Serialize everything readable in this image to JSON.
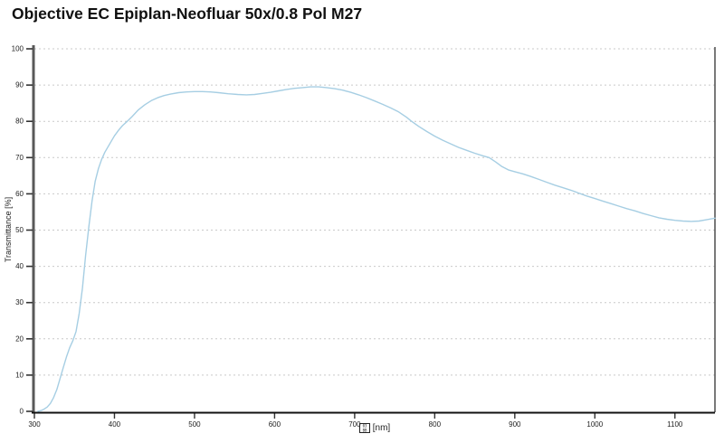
{
  "page": {
    "title": "Objective EC Epiplan-Neofluar 50x/0.8 Pol M27"
  },
  "colors": {
    "curve": "#a6cee3",
    "grid": "#c9c9c9",
    "y_axis": "#595959",
    "x_axis": "#111111",
    "right_border": "#4d4d4d",
    "tick": "#333333",
    "text": "#222222",
    "background": "#ffffff"
  },
  "chart_data": {
    "type": "line",
    "title": "Objective EC Epiplan-Neofluar 50x/0.8 Pol M27",
    "ylabel": "Transmittance [%]",
    "xlabel_unit": "[nm]",
    "xlabel_missing_glyph_hex_rows": {
      "top": "03",
      "bottom": "BB"
    },
    "xlim": [
      300,
      1150
    ],
    "ylim": [
      0,
      100
    ],
    "x_ticks": [
      300,
      400,
      500,
      600,
      700,
      800,
      900,
      1000,
      1100
    ],
    "y_ticks": [
      0,
      10,
      20,
      30,
      40,
      50,
      60,
      70,
      80,
      90,
      100
    ],
    "grid": "horizontal-dashed",
    "legend": "none",
    "series": [
      {
        "name": "Transmittance",
        "color": "#a6cee3",
        "points": [
          [
            304,
            0
          ],
          [
            308,
            0.2
          ],
          [
            312,
            0.6
          ],
          [
            316,
            1.2
          ],
          [
            320,
            2.2
          ],
          [
            324,
            3.8
          ],
          [
            328,
            6
          ],
          [
            332,
            9
          ],
          [
            336,
            12
          ],
          [
            340,
            15
          ],
          [
            344,
            17.5
          ],
          [
            348,
            19.5
          ],
          [
            352,
            22
          ],
          [
            356,
            27
          ],
          [
            360,
            34
          ],
          [
            364,
            43
          ],
          [
            368,
            51
          ],
          [
            372,
            58
          ],
          [
            376,
            63.5
          ],
          [
            380,
            67
          ],
          [
            384,
            69.5
          ],
          [
            388,
            71.5
          ],
          [
            392,
            73
          ],
          [
            396,
            74.5
          ],
          [
            400,
            76
          ],
          [
            405,
            77.5
          ],
          [
            410,
            78.8
          ],
          [
            416,
            80
          ],
          [
            422,
            81.3
          ],
          [
            430,
            83.2
          ],
          [
            438,
            84.6
          ],
          [
            446,
            85.7
          ],
          [
            454,
            86.5
          ],
          [
            462,
            87.1
          ],
          [
            470,
            87.5
          ],
          [
            480,
            87.9
          ],
          [
            490,
            88.1
          ],
          [
            500,
            88.2
          ],
          [
            510,
            88.2
          ],
          [
            520,
            88.1
          ],
          [
            530,
            87.9
          ],
          [
            542,
            87.6
          ],
          [
            554,
            87.4
          ],
          [
            565,
            87.3
          ],
          [
            575,
            87.4
          ],
          [
            585,
            87.7
          ],
          [
            595,
            88
          ],
          [
            605,
            88.4
          ],
          [
            615,
            88.8
          ],
          [
            625,
            89.1
          ],
          [
            635,
            89.3
          ],
          [
            645,
            89.5
          ],
          [
            655,
            89.5
          ],
          [
            665,
            89.3
          ],
          [
            675,
            89
          ],
          [
            685,
            88.6
          ],
          [
            695,
            88
          ],
          [
            705,
            87.3
          ],
          [
            715,
            86.5
          ],
          [
            725,
            85.6
          ],
          [
            735,
            84.7
          ],
          [
            745,
            83.7
          ],
          [
            755,
            82.6
          ],
          [
            765,
            81.1
          ],
          [
            770,
            80.2
          ],
          [
            780,
            78.6
          ],
          [
            790,
            77.2
          ],
          [
            800,
            75.9
          ],
          [
            810,
            74.8
          ],
          [
            820,
            73.8
          ],
          [
            830,
            72.8
          ],
          [
            840,
            72
          ],
          [
            850,
            71.2
          ],
          [
            860,
            70.5
          ],
          [
            868,
            70
          ],
          [
            876,
            68.8
          ],
          [
            884,
            67.5
          ],
          [
            892,
            66.6
          ],
          [
            900,
            66.1
          ],
          [
            910,
            65.5
          ],
          [
            920,
            64.8
          ],
          [
            930,
            64
          ],
          [
            940,
            63.2
          ],
          [
            950,
            62.4
          ],
          [
            960,
            61.7
          ],
          [
            970,
            61
          ],
          [
            980,
            60.2
          ],
          [
            990,
            59.4
          ],
          [
            1000,
            58.7
          ],
          [
            1010,
            58
          ],
          [
            1020,
            57.3
          ],
          [
            1030,
            56.6
          ],
          [
            1040,
            55.9
          ],
          [
            1050,
            55.3
          ],
          [
            1060,
            54.6
          ],
          [
            1070,
            54
          ],
          [
            1080,
            53.4
          ],
          [
            1090,
            53
          ],
          [
            1100,
            52.7
          ],
          [
            1110,
            52.5
          ],
          [
            1120,
            52.4
          ],
          [
            1130,
            52.5
          ],
          [
            1140,
            52.9
          ],
          [
            1150,
            53.3
          ]
        ]
      }
    ]
  }
}
